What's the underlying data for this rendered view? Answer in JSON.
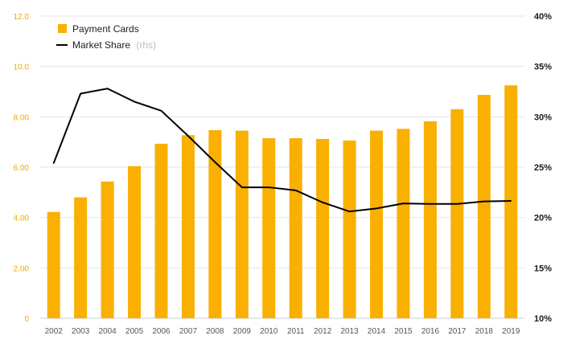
{
  "colors": {
    "bar": "#f9b000",
    "line": "#000000",
    "grid": "#e6e6e6",
    "left_axis_text": "#f2a900",
    "right_axis_text": "#1a1a1a",
    "x_axis_text": "#555555"
  },
  "legend": {
    "items": [
      {
        "label": "Payment Cards",
        "note": "",
        "icon": "bar-swatch-icon"
      },
      {
        "label": "Market Share",
        "note": "(rhs)",
        "icon": "line-swatch-icon"
      }
    ]
  },
  "chart_data": {
    "type": "bar",
    "categories": [
      "2002",
      "2003",
      "2004",
      "2005",
      "2006",
      "2007",
      "2008",
      "2009",
      "2010",
      "2011",
      "2012",
      "2013",
      "2014",
      "2015",
      "2016",
      "2017",
      "2018",
      "2019"
    ],
    "series": [
      {
        "name": "Payment Cards",
        "type": "bar",
        "axis": "left",
        "values": [
          4.22,
          4.8,
          5.43,
          6.04,
          6.93,
          7.27,
          7.47,
          7.45,
          7.15,
          7.15,
          7.12,
          7.06,
          7.45,
          7.52,
          7.82,
          8.3,
          8.87,
          9.25
        ]
      },
      {
        "name": "Market Share",
        "type": "line",
        "axis": "right",
        "values": [
          25.4,
          32.3,
          32.8,
          31.5,
          30.6,
          28.1,
          25.5,
          23.0,
          23.0,
          22.7,
          21.5,
          20.6,
          20.9,
          21.4,
          21.35,
          21.35,
          21.6,
          21.65
        ]
      }
    ],
    "y_left": {
      "ylim": [
        0,
        12
      ],
      "ticks": [
        "0",
        "2.00",
        "4.00",
        "6.00",
        "8.00",
        "10.0",
        "12.0"
      ]
    },
    "y_right": {
      "ylim": [
        10,
        40
      ],
      "ticks": [
        "10%",
        "15%",
        "20%",
        "25%",
        "30%",
        "35%",
        "40%"
      ]
    },
    "grid": true,
    "legend_position": "top-left"
  }
}
